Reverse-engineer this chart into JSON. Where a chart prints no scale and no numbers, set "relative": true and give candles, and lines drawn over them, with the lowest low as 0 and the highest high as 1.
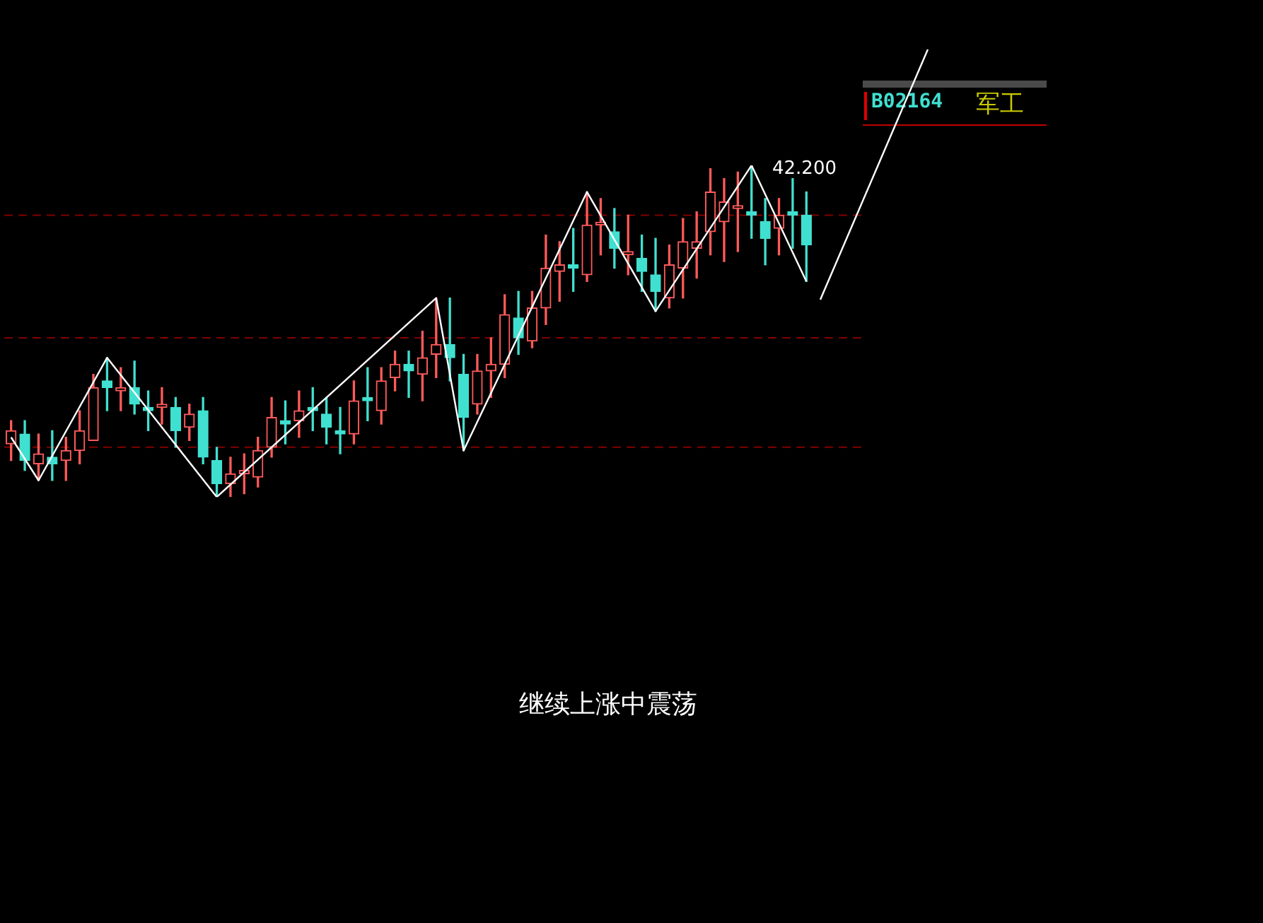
{
  "chart_data": {
    "type": "candlestick",
    "relative": true,
    "title": "B02164",
    "subtitle": "军工",
    "categories": [
      null,
      null,
      null,
      null,
      null,
      null,
      null,
      null,
      null,
      null,
      null,
      null,
      null,
      null,
      null,
      null,
      null,
      null,
      null,
      null,
      null,
      null,
      null,
      null,
      null,
      null,
      null,
      null,
      null,
      null,
      null,
      null,
      null,
      null,
      null,
      null,
      null,
      null,
      null,
      null,
      null,
      null,
      null,
      null,
      null,
      null,
      null,
      null,
      null,
      null,
      null,
      null,
      null,
      null,
      null,
      null,
      null,
      null,
      null
    ],
    "ohlc": [
      [
        0.16,
        0.23,
        0.11,
        0.2
      ],
      [
        0.19,
        0.23,
        0.08,
        0.11
      ],
      [
        0.1,
        0.19,
        0.05,
        0.13
      ],
      [
        0.12,
        0.2,
        0.05,
        0.1
      ],
      [
        0.11,
        0.18,
        0.05,
        0.14
      ],
      [
        0.14,
        0.26,
        0.1,
        0.2
      ],
      [
        0.17,
        0.37,
        0.17,
        0.33
      ],
      [
        0.35,
        0.42,
        0.26,
        0.33
      ],
      [
        0.32,
        0.39,
        0.26,
        0.33
      ],
      [
        0.33,
        0.41,
        0.25,
        0.28
      ],
      [
        0.27,
        0.32,
        0.2,
        0.26
      ],
      [
        0.27,
        0.33,
        0.22,
        0.28
      ],
      [
        0.27,
        0.3,
        0.15,
        0.2
      ],
      [
        0.21,
        0.28,
        0.17,
        0.25
      ],
      [
        0.26,
        0.3,
        0.1,
        0.12
      ],
      [
        0.11,
        0.15,
        0,
        0.04
      ],
      [
        0.04,
        0.12,
        0,
        0.07
      ],
      [
        0.07,
        0.13,
        0.01,
        0.08
      ],
      [
        0.06,
        0.18,
        0.03,
        0.14
      ],
      [
        0.15,
        0.3,
        0.12,
        0.24
      ],
      [
        0.23,
        0.29,
        0.16,
        0.22
      ],
      [
        0.23,
        0.32,
        0.18,
        0.26
      ],
      [
        0.27,
        0.33,
        0.2,
        0.26
      ],
      [
        0.25,
        0.3,
        0.16,
        0.21
      ],
      [
        0.2,
        0.27,
        0.13,
        0.19
      ],
      [
        0.19,
        0.35,
        0.16,
        0.29
      ],
      [
        0.3,
        0.39,
        0.23,
        0.29
      ],
      [
        0.26,
        0.39,
        0.22,
        0.35
      ],
      [
        0.36,
        0.44,
        0.32,
        0.4
      ],
      [
        0.4,
        0.44,
        0.3,
        0.38
      ],
      [
        0.37,
        0.5,
        0.29,
        0.42
      ],
      [
        0.43,
        0.6,
        0.36,
        0.46
      ],
      [
        0.46,
        0.6,
        0.35,
        0.42
      ],
      [
        0.37,
        0.43,
        0.14,
        0.24
      ],
      [
        0.28,
        0.43,
        0.25,
        0.38
      ],
      [
        0.38,
        0.48,
        0.3,
        0.4
      ],
      [
        0.4,
        0.61,
        0.36,
        0.55
      ],
      [
        0.54,
        0.62,
        0.43,
        0.48
      ],
      [
        0.47,
        0.62,
        0.45,
        0.57
      ],
      [
        0.57,
        0.79,
        0.52,
        0.69
      ],
      [
        0.68,
        0.77,
        0.59,
        0.7
      ],
      [
        0.7,
        0.81,
        0.62,
        0.69
      ],
      [
        0.67,
        0.92,
        0.65,
        0.82
      ],
      [
        0.82,
        0.9,
        0.73,
        0.82
      ],
      [
        0.8,
        0.87,
        0.69,
        0.75
      ],
      [
        0.73,
        0.85,
        0.67,
        0.74
      ],
      [
        0.72,
        0.79,
        0.62,
        0.68
      ],
      [
        0.67,
        0.78,
        0.56,
        0.62
      ],
      [
        0.6,
        0.76,
        0.57,
        0.7
      ],
      [
        0.69,
        0.84,
        0.6,
        0.77
      ],
      [
        0.75,
        0.86,
        0.66,
        0.77
      ],
      [
        0.8,
        0.99,
        0.73,
        0.92
      ],
      [
        0.83,
        0.96,
        0.71,
        0.89
      ],
      [
        0.87,
        0.98,
        0.74,
        0.87
      ],
      [
        0.86,
        1,
        0.78,
        0.85
      ],
      [
        0.83,
        0.9,
        0.7,
        0.78
      ],
      [
        0.81,
        0.9,
        0.73,
        0.85
      ],
      [
        0.86,
        0.96,
        0.75,
        0.85
      ],
      [
        0.85,
        0.92,
        0.65,
        0.76
      ]
    ],
    "series": [
      {
        "type": "line",
        "color": "#ffffff",
        "values": [
          0.18,
          null,
          0.05,
          null,
          null,
          null,
          null,
          0.42,
          null,
          null,
          null,
          null,
          null,
          null,
          null,
          0,
          null,
          null,
          null,
          null,
          null,
          null,
          null,
          null,
          null,
          null,
          null,
          null,
          null,
          null,
          null,
          0.6,
          null,
          0.14,
          null,
          null,
          null,
          null,
          null,
          null,
          null,
          null,
          0.92,
          null,
          null,
          null,
          null,
          0.56,
          null,
          null,
          null,
          null,
          null,
          null,
          1,
          null,
          null,
          null,
          0.65
        ]
      }
    ],
    "ref_lines": [
      {
        "axis": "y",
        "value": 0.85,
        "color": "#800000",
        "line_style": "dashed"
      },
      {
        "axis": "y",
        "value": 0.48,
        "color": "#800000",
        "line_style": "dashed"
      },
      {
        "axis": "y",
        "value": 0.15,
        "color": "#800000",
        "line_style": "dashed"
      }
    ],
    "annotations": [
      "42.200",
      "继续上涨中震荡"
    ],
    "legend": false,
    "marker": "none",
    "line_style": "solid"
  }
}
